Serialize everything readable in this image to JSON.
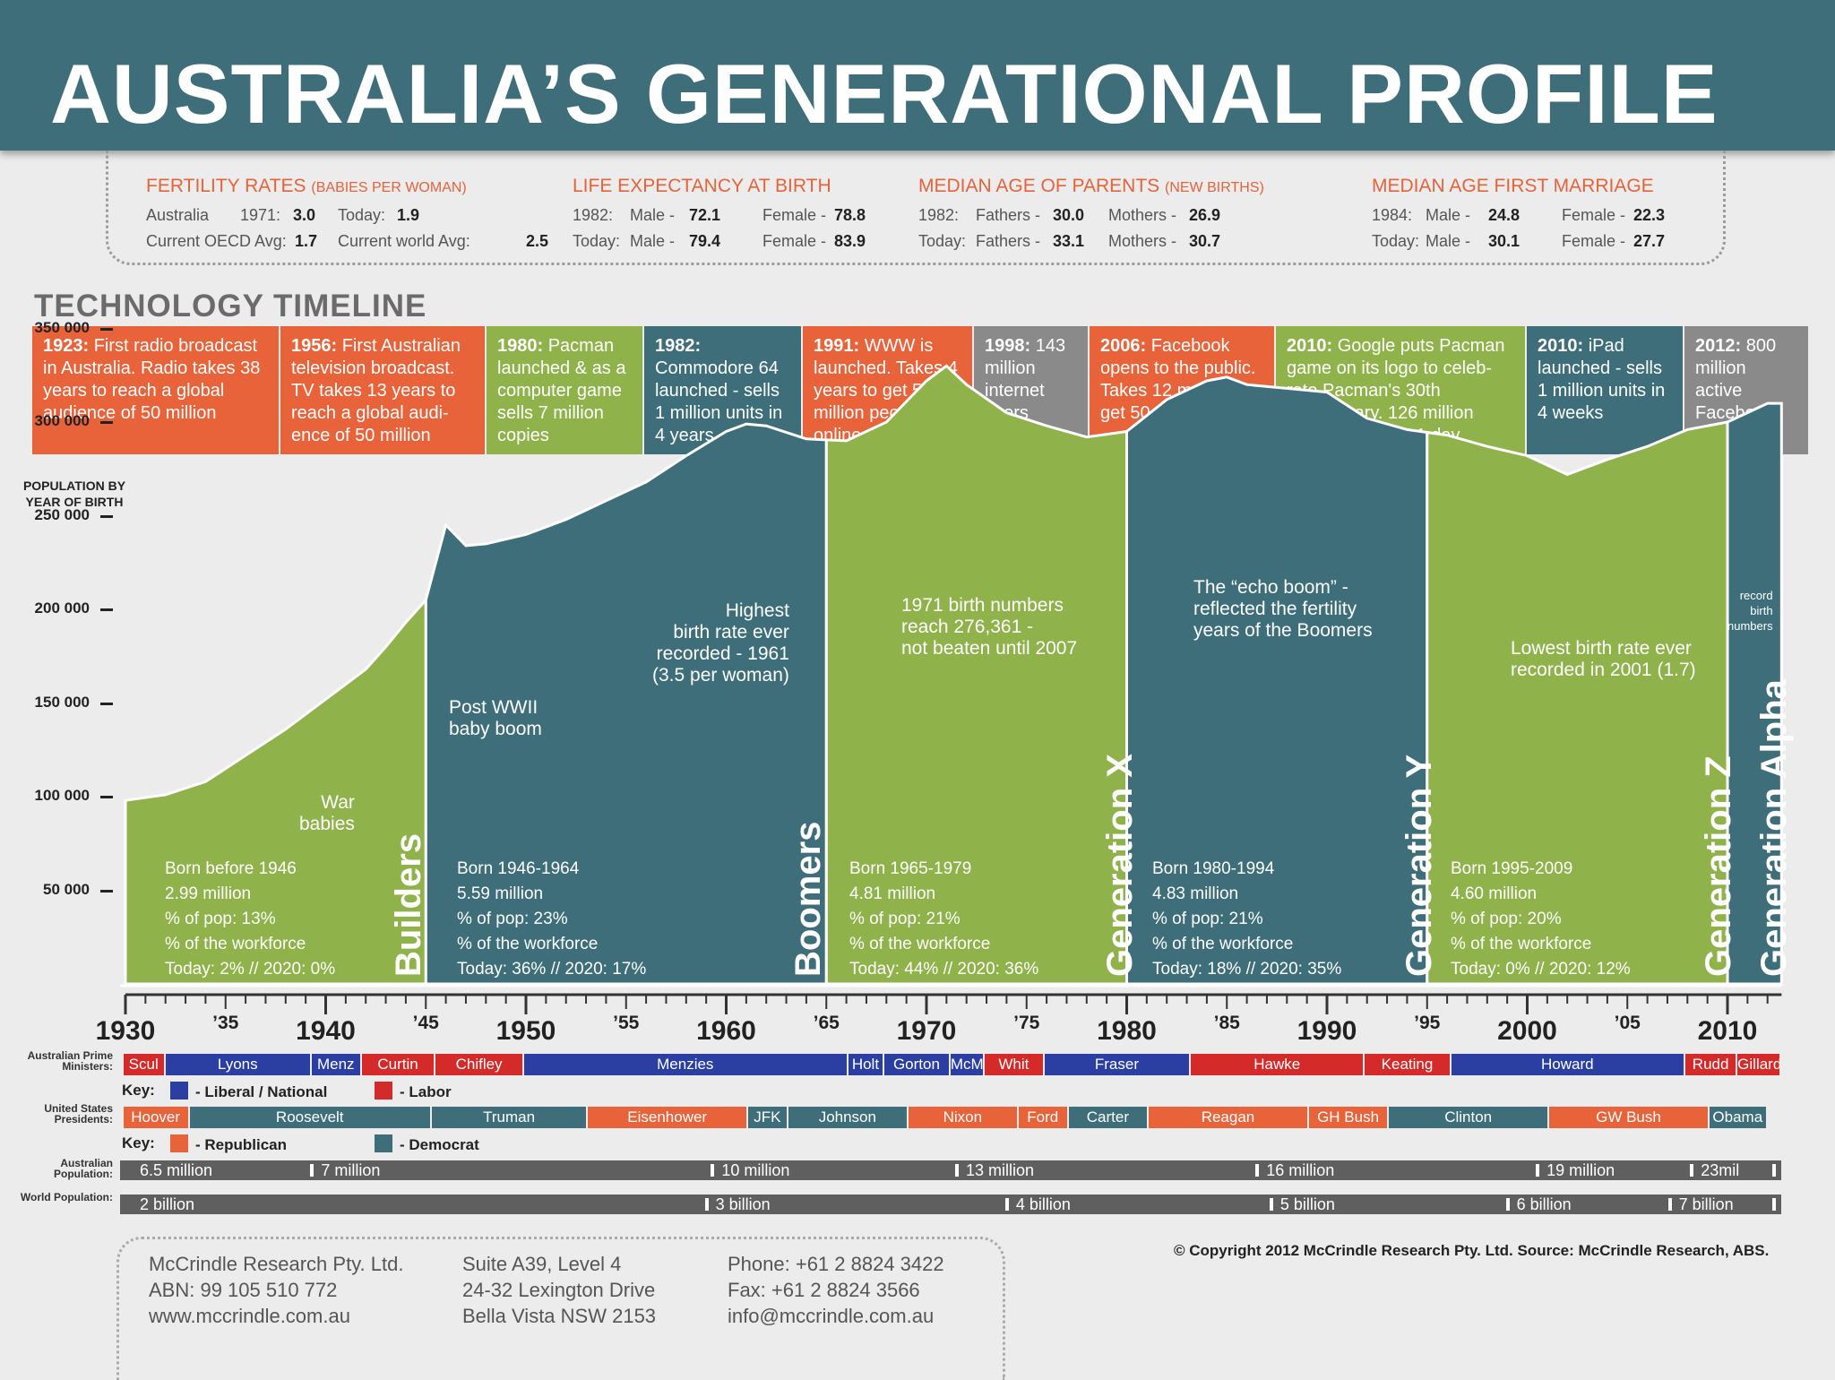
{
  "title": "AUSTRALIA’S  GENERATIONAL PROFILE",
  "stats": {
    "fertility": {
      "title": "FERTILITY RATES",
      "title_sub": "(BABIES PER WOMAN)",
      "r1": [
        "Australia",
        "1971:",
        "3.0",
        "Today:",
        "1.9"
      ],
      "r2": [
        "Current OECD Avg:",
        "1.7",
        "Current world Avg:",
        "2.5"
      ]
    },
    "life": {
      "title": "LIFE EXPECTANCY AT BIRTH",
      "r1": [
        "1982:",
        "Male -",
        "72.1",
        "Female -",
        "78.8"
      ],
      "r2": [
        "Today:",
        "Male -",
        "79.4",
        "Female -",
        "83.9"
      ]
    },
    "parents": {
      "title": "MEDIAN AGE OF PARENTS",
      "title_sub": "(NEW BIRTHS)",
      "r1": [
        "1982:",
        "Fathers -",
        "30.0",
        "Mothers -",
        "26.9"
      ],
      "r2": [
        "Today:",
        "Fathers -",
        "33.1",
        "Mothers -",
        "30.7"
      ]
    },
    "marriage": {
      "title": "MEDIAN AGE FIRST MARRIAGE",
      "r1": [
        "1984:",
        "Male -",
        "24.8",
        "Female -",
        "22.3"
      ],
      "r2": [
        "Today:",
        "Male -",
        "30.1",
        "Female -",
        "27.7"
      ]
    }
  },
  "tech_title": "TECHNOLOGY TIMELINE",
  "timeline": [
    {
      "year": "1923:",
      "text": " First radio broadcast in Australia. Radio takes 38 years to reach a global audience of 50 million",
      "color": "#e8623a"
    },
    {
      "year": "1956:",
      "text": " First Australian television broadcast. TV takes 13 years to reach a global audi- ence of 50 million",
      "color": "#e8623a"
    },
    {
      "year": "1980:",
      "text": " Pacman launched & as a computer game sells 7 million copies",
      "color": "#8fb24a"
    },
    {
      "year": "1982:",
      "text": " Commodore 64 launched - sells 1 million units in 4 years",
      "color": "#3d6e7a"
    },
    {
      "year": "1991:",
      "text": " WWW is launched. Takes 4 years to get 50 million people online",
      "color": "#e8623a"
    },
    {
      "year": "1998:",
      "text": " 143 million internet users",
      "color": "#8a8a8a"
    },
    {
      "year": "2006:",
      "text": " Facebook opens to the public. Takes 12 months to get 50 million users",
      "color": "#e8623a"
    },
    {
      "year": "2010:",
      "text": " Google puts Pacman game on its logo to celeb- rate Pacman's 30th anniversary. 126 million people play it in 1 day",
      "color": "#8fb24a"
    },
    {
      "year": "2010:",
      "text": " iPad launched - sells 1 million units in 4 weeks",
      "color": "#3d6e7a"
    },
    {
      "year": "2012:",
      "text": " 800 million active Facebook accounts",
      "color": "#8a8a8a"
    }
  ],
  "chart_data": {
    "type": "area",
    "ylabel": "POPULATION BY YEAR OF BIRTH",
    "yticks": [
      {
        "value": 350000,
        "label": "350 000"
      },
      {
        "value": 300000,
        "label": "300 000"
      },
      {
        "value": 250000,
        "label": "250 000"
      },
      {
        "value": 200000,
        "label": "200 000"
      },
      {
        "value": 150000,
        "label": "150 000"
      },
      {
        "value": 100000,
        "label": "100 000"
      },
      {
        "value": 50000,
        "label": "50 000"
      }
    ],
    "ylim": [
      0,
      350000
    ],
    "xlim": [
      1930,
      2012
    ],
    "xticks_major": [
      {
        "value": 1930,
        "label": "1930"
      },
      {
        "value": 1940,
        "label": "1940"
      },
      {
        "value": 1950,
        "label": "1950"
      },
      {
        "value": 1960,
        "label": "1960"
      },
      {
        "value": 1970,
        "label": "1970"
      },
      {
        "value": 1980,
        "label": "1980"
      },
      {
        "value": 1990,
        "label": "1990"
      },
      {
        "value": 2000,
        "label": "2000"
      },
      {
        "value": 2010,
        "label": "2010"
      }
    ],
    "xticks_minor": [
      {
        "value": 1935,
        "label": "’35"
      },
      {
        "value": 1945,
        "label": "’45"
      },
      {
        "value": 1955,
        "label": "’55"
      },
      {
        "value": 1965,
        "label": "’65"
      },
      {
        "value": 1975,
        "label": "’75"
      },
      {
        "value": 1985,
        "label": "’85"
      },
      {
        "value": 1995,
        "label": "’95"
      },
      {
        "value": 2005,
        "label": "’05"
      }
    ],
    "births": {
      "x": [
        1930,
        1932,
        1934,
        1936,
        1938,
        1940,
        1942,
        1943,
        1944,
        1945,
        1946,
        1947,
        1948,
        1950,
        1952,
        1954,
        1956,
        1958,
        1960,
        1961,
        1962,
        1964,
        1966,
        1968,
        1970,
        1971,
        1972,
        1974,
        1976,
        1978,
        1980,
        1982,
        1984,
        1985,
        1986,
        1988,
        1990,
        1992,
        1994,
        1996,
        1998,
        2000,
        2002,
        2004,
        2006,
        2008,
        2010,
        2012
      ],
      "y": [
        98000,
        101000,
        108000,
        122000,
        136000,
        152000,
        168000,
        180000,
        193000,
        205000,
        245000,
        234000,
        235000,
        240000,
        248000,
        258000,
        268000,
        282000,
        295000,
        299000,
        298000,
        291000,
        290000,
        300000,
        322000,
        330000,
        320000,
        305000,
        298000,
        292000,
        295000,
        312000,
        322000,
        324000,
        320000,
        318000,
        316000,
        302000,
        296000,
        293000,
        287000,
        282000,
        272000,
        280000,
        287000,
        296000,
        300000,
        310000
      ]
    },
    "generations": [
      {
        "name": "Builders",
        "from": 1930,
        "to": 1945,
        "color": "#8fb24a",
        "lines": [
          "Born before 1946",
          "2.99 million",
          "% of pop: 13%",
          "% of the workforce",
          "Today: 2%  // 2020: 0%"
        ]
      },
      {
        "name": "Boomers",
        "from": 1945,
        "to": 1965,
        "color": "#3d6e7a",
        "lines": [
          "Born 1946-1964",
          "5.59 million",
          "% of pop: 23%",
          "% of the workforce",
          "Today: 36%  // 2020: 17%"
        ]
      },
      {
        "name": "Generation X",
        "from": 1965,
        "to": 1980,
        "color": "#8fb24a",
        "lines": [
          "Born 1965-1979",
          "4.81 million",
          "% of pop: 21%",
          "% of the workforce",
          "Today: 44% // 2020: 36%"
        ]
      },
      {
        "name": "Generation Y",
        "from": 1980,
        "to": 1995,
        "color": "#3d6e7a",
        "lines": [
          "Born 1980-1994",
          "4.83 million",
          "% of pop: 21%",
          "% of the workforce",
          "Today: 18% // 2020: 35%"
        ]
      },
      {
        "name": "Generation Z",
        "from": 1995,
        "to": 2010,
        "color": "#8fb24a",
        "lines": [
          "Born 1995-2009",
          "4.60 million",
          "% of pop: 20%",
          "% of the workforce",
          "Today: 0%  // 2020: 12%"
        ]
      },
      {
        "name": "Generation Alpha",
        "from": 2010,
        "to": 2012.7,
        "color": "#3d6e7a",
        "lines": []
      }
    ],
    "annotations": [
      {
        "id": "war-babies",
        "lines": [
          "War",
          "babies"
        ]
      },
      {
        "id": "post-wwii",
        "lines": [
          "Post WWII",
          "baby boom"
        ]
      },
      {
        "id": "highest-1961",
        "lines": [
          "Highest",
          "birth rate ever",
          "recorded - 1961",
          "(3.5 per woman)"
        ]
      },
      {
        "id": "births-1971",
        "lines": [
          "1971 birth numbers",
          "reach 276,361 -",
          "not beaten until 2007"
        ]
      },
      {
        "id": "echo-boom",
        "lines": [
          "The “echo boom” -",
          "reflected the fertility",
          "years of the Boomers"
        ]
      },
      {
        "id": "lowest-2001",
        "lines": [
          "Lowest birth rate ever",
          "recorded in 2001 (1.7)"
        ]
      },
      {
        "id": "record-births",
        "lines": [
          "record",
          "birth",
          "numbers"
        ]
      }
    ]
  },
  "prime_ministers": {
    "label": "Australian Prime Ministers:",
    "items": [
      {
        "name": "Scul",
        "from": 1929.9,
        "to": 1932,
        "party": "labor"
      },
      {
        "name": "Lyons",
        "from": 1932,
        "to": 1939.3,
        "party": "liberal"
      },
      {
        "name": "Menz",
        "from": 1939.3,
        "to": 1941.8,
        "party": "liberal"
      },
      {
        "name": "Curtin",
        "from": 1941.8,
        "to": 1945.5,
        "party": "labor"
      },
      {
        "name": "Chifley",
        "from": 1945.5,
        "to": 1949.9,
        "party": "labor"
      },
      {
        "name": "Menzies",
        "from": 1949.9,
        "to": 1966.1,
        "party": "liberal"
      },
      {
        "name": "Holt",
        "from": 1966.1,
        "to": 1967.9,
        "party": "liberal"
      },
      {
        "name": "Gorton",
        "from": 1967.9,
        "to": 1971.2,
        "party": "liberal"
      },
      {
        "name": "McM",
        "from": 1971.2,
        "to": 1972.9,
        "party": "liberal"
      },
      {
        "name": "Whit",
        "from": 1972.9,
        "to": 1975.9,
        "party": "labor"
      },
      {
        "name": "Fraser",
        "from": 1975.9,
        "to": 1983.2,
        "party": "liberal"
      },
      {
        "name": "Hawke",
        "from": 1983.2,
        "to": 1991.9,
        "party": "labor"
      },
      {
        "name": "Keating",
        "from": 1991.9,
        "to": 1996.2,
        "party": "labor"
      },
      {
        "name": "Howard",
        "from": 1996.2,
        "to": 2007.9,
        "party": "liberal"
      },
      {
        "name": "Rudd",
        "from": 2007.9,
        "to": 2010.5,
        "party": "labor"
      },
      {
        "name": "Gillard",
        "from": 2010.5,
        "to": 2013,
        "party": "labor"
      }
    ],
    "key_label": "Key:",
    "key": [
      {
        "party": "liberal",
        "label": "- Liberal / National",
        "color": "#2b3fa3"
      },
      {
        "party": "labor",
        "label": "- Labor",
        "color": "#d42a2a"
      }
    ]
  },
  "presidents": {
    "label": "United States Presidents:",
    "items": [
      {
        "name": "Hoover",
        "from": 1929.9,
        "to": 1933.2,
        "party": "republican"
      },
      {
        "name": "Roosevelt",
        "from": 1933.2,
        "to": 1945.3,
        "party": "democrat"
      },
      {
        "name": "Truman",
        "from": 1945.3,
        "to": 1953.1,
        "party": "democrat"
      },
      {
        "name": "Eisenhower",
        "from": 1953.1,
        "to": 1961.1,
        "party": "republican"
      },
      {
        "name": "JFK",
        "from": 1961.1,
        "to": 1963.1,
        "party": "democrat"
      },
      {
        "name": "Johnson",
        "from": 1963.1,
        "to": 1969.1,
        "party": "democrat"
      },
      {
        "name": "Nixon",
        "from": 1969.1,
        "to": 1974.6,
        "party": "republican"
      },
      {
        "name": "Ford",
        "from": 1974.6,
        "to": 1977.1,
        "party": "republican"
      },
      {
        "name": "Carter",
        "from": 1977.1,
        "to": 1981.1,
        "party": "democrat"
      },
      {
        "name": "Reagan",
        "from": 1981.1,
        "to": 1989.1,
        "party": "republican"
      },
      {
        "name": "GH Bush",
        "from": 1989.1,
        "to": 1993.1,
        "party": "republican"
      },
      {
        "name": "Clinton",
        "from": 1993.1,
        "to": 2001.1,
        "party": "democrat"
      },
      {
        "name": "GW Bush",
        "from": 2001.1,
        "to": 2009.1,
        "party": "republican"
      },
      {
        "name": "Obama",
        "from": 2009.1,
        "to": 2012,
        "party": "democrat"
      }
    ],
    "key_label": "Key:",
    "key": [
      {
        "party": "republican",
        "label": "- Republican",
        "color": "#e8623a"
      },
      {
        "party": "democrat",
        "label": "- Democrat",
        "color": "#3d6e7a"
      }
    ]
  },
  "aus_population": {
    "label": "Australian Population:",
    "markers": [
      {
        "at": 1930,
        "label": "6.5 million"
      },
      {
        "at": 1939.5,
        "label": "7 million"
      },
      {
        "at": 1959.5,
        "label": "10 million"
      },
      {
        "at": 1971.7,
        "label": "13 million"
      },
      {
        "at": 1986.7,
        "label": "16 million"
      },
      {
        "at": 2000.7,
        "label": "19 million"
      },
      {
        "at": 2008.4,
        "label": "23mil"
      }
    ]
  },
  "world_population": {
    "label": "World Population:",
    "markers": [
      {
        "at": 1930,
        "label": "2 billion"
      },
      {
        "at": 1959.2,
        "label": "3 billion"
      },
      {
        "at": 1974.2,
        "label": "4 billion"
      },
      {
        "at": 1987.4,
        "label": "5 billion"
      },
      {
        "at": 1999.2,
        "label": "6 billion"
      },
      {
        "at": 2007.3,
        "label": "7 billion"
      }
    ]
  },
  "contact": {
    "col1": [
      "McCrindle Research Pty. Ltd.",
      "ABN: 99 105 510 772",
      "www.mccrindle.com.au"
    ],
    "col2": [
      "Suite A39, Level 4",
      "24-32 Lexington Drive",
      "Bella Vista NSW 2153"
    ],
    "col3": [
      "Phone: +61 2 8824 3422",
      "Fax: +61 2 8824 3566",
      "info@mccrindle.com.au"
    ]
  },
  "copyright": "© Copyright 2012 McCrindle Research Pty. Ltd.   Source: McCrindle Research, ABS.",
  "colors": {
    "teal": "#3d6e7a",
    "green": "#8fb24a",
    "orange": "#e8623a",
    "grey": "#8a8a8a",
    "liberal": "#2b3fa3",
    "labor": "#d42a2a"
  }
}
